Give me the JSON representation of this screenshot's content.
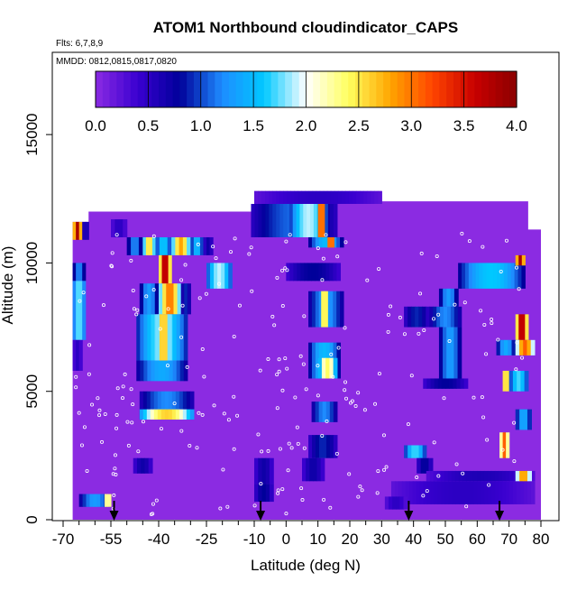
{
  "chart_data": {
    "type": "heatmap",
    "title": "ATOM1 Northbound cloudindicator_CAPS",
    "subtitle_lines": [
      "Flts: 6,7,8,9",
      "MMDD: 0812,0815,0817,0820"
    ],
    "xlabel": "Latitude (deg N)",
    "ylabel": "Altitude (m)",
    "xlim": [
      -70,
      80
    ],
    "ylim": [
      0,
      17500
    ],
    "x_ticks": [
      -70,
      -55,
      -40,
      -25,
      -10,
      0,
      10,
      20,
      30,
      40,
      50,
      60,
      70,
      80
    ],
    "y_ticks": [
      0,
      5000,
      10000,
      15000
    ],
    "colorbar": {
      "ticks": [
        0.0,
        0.5,
        1.0,
        1.5,
        2.0,
        2.5,
        3.0,
        3.5,
        4.0
      ],
      "tick_labels": [
        "0.0",
        "0.5",
        "1.0",
        "1.5",
        "2.0",
        "2.5",
        "3.0",
        "3.5",
        "4.0"
      ],
      "colors": [
        "#8b2be2",
        "#3a00d0",
        "#00009a",
        "#1e8cff",
        "#00c8ff",
        "#ffffff",
        "#ffff60",
        "#ffa500",
        "#ff4500",
        "#c80000",
        "#8b0000"
      ]
    },
    "background_value": 0.0,
    "arrows_lat": [
      -54,
      -8,
      38.5,
      67
    ],
    "cells": [
      {
        "lat": [
          -67,
          -64
        ],
        "alt": [
          10900,
          11600
        ],
        "v": 3.8
      },
      {
        "lat": [
          -64,
          -62
        ],
        "alt": [
          10900,
          11600
        ],
        "v": 0.7
      },
      {
        "lat": [
          -67,
          -63
        ],
        "alt": [
          9300,
          10000
        ],
        "v": 1.2
      },
      {
        "lat": [
          -67,
          -63
        ],
        "alt": [
          7000,
          9300
        ],
        "v": 1.8
      },
      {
        "lat": [
          -67,
          -64
        ],
        "alt": [
          5800,
          7000
        ],
        "v": 0.5
      },
      {
        "lat": [
          -55,
          -50
        ],
        "alt": [
          11000,
          11700
        ],
        "v": 0.5
      },
      {
        "lat": [
          -50,
          -45
        ],
        "alt": [
          10300,
          11000
        ],
        "v": 1.2
      },
      {
        "lat": [
          -45,
          -41
        ],
        "alt": [
          10300,
          11000
        ],
        "v": 2.6
      },
      {
        "lat": [
          -41,
          -36
        ],
        "alt": [
          10300,
          11000
        ],
        "v": 1.6
      },
      {
        "lat": [
          -36,
          -30
        ],
        "alt": [
          10300,
          11000
        ],
        "v": 2.8
      },
      {
        "lat": [
          -30,
          -26
        ],
        "alt": [
          10300,
          11000
        ],
        "v": 1.5
      },
      {
        "lat": [
          -26,
          -23
        ],
        "alt": [
          10300,
          11000
        ],
        "v": 0.7
      },
      {
        "lat": [
          -40,
          -36
        ],
        "alt": [
          9200,
          10300
        ],
        "v": 3.8
      },
      {
        "lat": [
          -46,
          -40
        ],
        "alt": [
          8000,
          9200
        ],
        "v": 1.3
      },
      {
        "lat": [
          -40,
          -33
        ],
        "alt": [
          8000,
          9200
        ],
        "v": 3.0
      },
      {
        "lat": [
          -33,
          -30
        ],
        "alt": [
          8000,
          9200
        ],
        "v": 0.9
      },
      {
        "lat": [
          -47,
          -31
        ],
        "alt": [
          6200,
          8000
        ],
        "v": 1.8
      },
      {
        "lat": [
          -41,
          -36
        ],
        "alt": [
          6200,
          8000
        ],
        "v": 2.7
      },
      {
        "lat": [
          -47,
          -31
        ],
        "alt": [
          5400,
          6200
        ],
        "v": 1.4
      },
      {
        "lat": [
          -46,
          -29
        ],
        "alt": [
          3900,
          5000
        ],
        "v": 1.2
      },
      {
        "lat": [
          -46,
          -29
        ],
        "alt": [
          3900,
          4300
        ],
        "v": 2.6
      },
      {
        "lat": [
          -25,
          -17
        ],
        "alt": [
          9000,
          10000
        ],
        "v": 1.9
      },
      {
        "lat": [
          -11,
          16
        ],
        "alt": [
          11000,
          12300
        ],
        "v": 1.1
      },
      {
        "lat": [
          1,
          13
        ],
        "alt": [
          11000,
          12300
        ],
        "v": 1.9
      },
      {
        "lat": [
          10,
          12
        ],
        "alt": [
          11000,
          12300
        ],
        "v": 3.6
      },
      {
        "lat": [
          -10,
          30
        ],
        "alt": [
          12300,
          12800
        ],
        "v": 0.5
      },
      {
        "lat": [
          7,
          18
        ],
        "alt": [
          10600,
          11000
        ],
        "v": 1.5
      },
      {
        "lat": [
          13,
          15
        ],
        "alt": [
          10600,
          11000
        ],
        "v": 3.6
      },
      {
        "lat": [
          0,
          17
        ],
        "alt": [
          9300,
          10000
        ],
        "v": 0.8
      },
      {
        "lat": [
          7,
          18
        ],
        "alt": [
          7500,
          8900
        ],
        "v": 1.3
      },
      {
        "lat": [
          11,
          13
        ],
        "alt": [
          7500,
          8900
        ],
        "v": 2.9
      },
      {
        "lat": [
          7,
          17
        ],
        "alt": [
          5500,
          6900
        ],
        "v": 1.5
      },
      {
        "lat": [
          10,
          16
        ],
        "alt": [
          5500,
          6300
        ],
        "v": 2.4
      },
      {
        "lat": [
          8,
          16
        ],
        "alt": [
          3800,
          4600
        ],
        "v": 1.2
      },
      {
        "lat": [
          7,
          16
        ],
        "alt": [
          2400,
          3300
        ],
        "v": 0.9
      },
      {
        "lat": [
          37,
          44
        ],
        "alt": [
          2400,
          2900
        ],
        "v": 1.7
      },
      {
        "lat": [
          41,
          46
        ],
        "alt": [
          1800,
          2400
        ],
        "v": 0.8
      },
      {
        "lat": [
          44,
          78
        ],
        "alt": [
          1500,
          1900
        ],
        "v": 0.6
      },
      {
        "lat": [
          33,
          78
        ],
        "alt": [
          600,
          1500
        ],
        "v": 0.5
      },
      {
        "lat": [
          37,
          45
        ],
        "alt": [
          7500,
          8300
        ],
        "v": 0.9
      },
      {
        "lat": [
          45,
          55
        ],
        "alt": [
          7500,
          8300
        ],
        "v": 1.2
      },
      {
        "lat": [
          48,
          55
        ],
        "alt": [
          5500,
          7500
        ],
        "v": 1.3
      },
      {
        "lat": [
          43,
          57
        ],
        "alt": [
          5100,
          5500
        ],
        "v": 0.8
      },
      {
        "lat": [
          48,
          54
        ],
        "alt": [
          8300,
          9000
        ],
        "v": 1.3
      },
      {
        "lat": [
          54,
          75
        ],
        "alt": [
          9000,
          10000
        ],
        "v": 1.6
      },
      {
        "lat": [
          72,
          75
        ],
        "alt": [
          9900,
          10300
        ],
        "v": 3.8
      },
      {
        "lat": [
          72,
          76
        ],
        "alt": [
          7000,
          8000
        ],
        "v": 3.8
      },
      {
        "lat": [
          66,
          72
        ],
        "alt": [
          6400,
          7000
        ],
        "v": 1.4
      },
      {
        "lat": [
          72,
          78
        ],
        "alt": [
          6400,
          7000
        ],
        "v": 3.1
      },
      {
        "lat": [
          68,
          70
        ],
        "alt": [
          5000,
          5800
        ],
        "v": 3.0
      },
      {
        "lat": [
          70,
          76
        ],
        "alt": [
          5000,
          5800
        ],
        "v": 1.7
      },
      {
        "lat": [
          72,
          77
        ],
        "alt": [
          3500,
          4300
        ],
        "v": 1.4
      },
      {
        "lat": [
          67,
          70
        ],
        "alt": [
          2400,
          3400
        ],
        "v": 3.1
      },
      {
        "lat": [
          72,
          77
        ],
        "alt": [
          1500,
          1900
        ],
        "v": 2.9
      },
      {
        "lat": [
          -65,
          -55
        ],
        "alt": [
          500,
          1000
        ],
        "v": 1.3
      },
      {
        "lat": [
          -57,
          -55
        ],
        "alt": [
          500,
          1000
        ],
        "v": 2.7
      },
      {
        "lat": [
          -48,
          -42
        ],
        "alt": [
          1800,
          2400
        ],
        "v": 0.7
      },
      {
        "lat": [
          -10,
          -4
        ],
        "alt": [
          1400,
          2400
        ],
        "v": 0.7
      },
      {
        "lat": [
          -10,
          -4
        ],
        "alt": [
          700,
          1400
        ],
        "v": 0.8
      },
      {
        "lat": [
          5,
          12
        ],
        "alt": [
          1500,
          2400
        ],
        "v": 0.7
      },
      {
        "lat": [
          31,
          38
        ],
        "alt": [
          400,
          900
        ],
        "v": 0.5
      }
    ]
  }
}
